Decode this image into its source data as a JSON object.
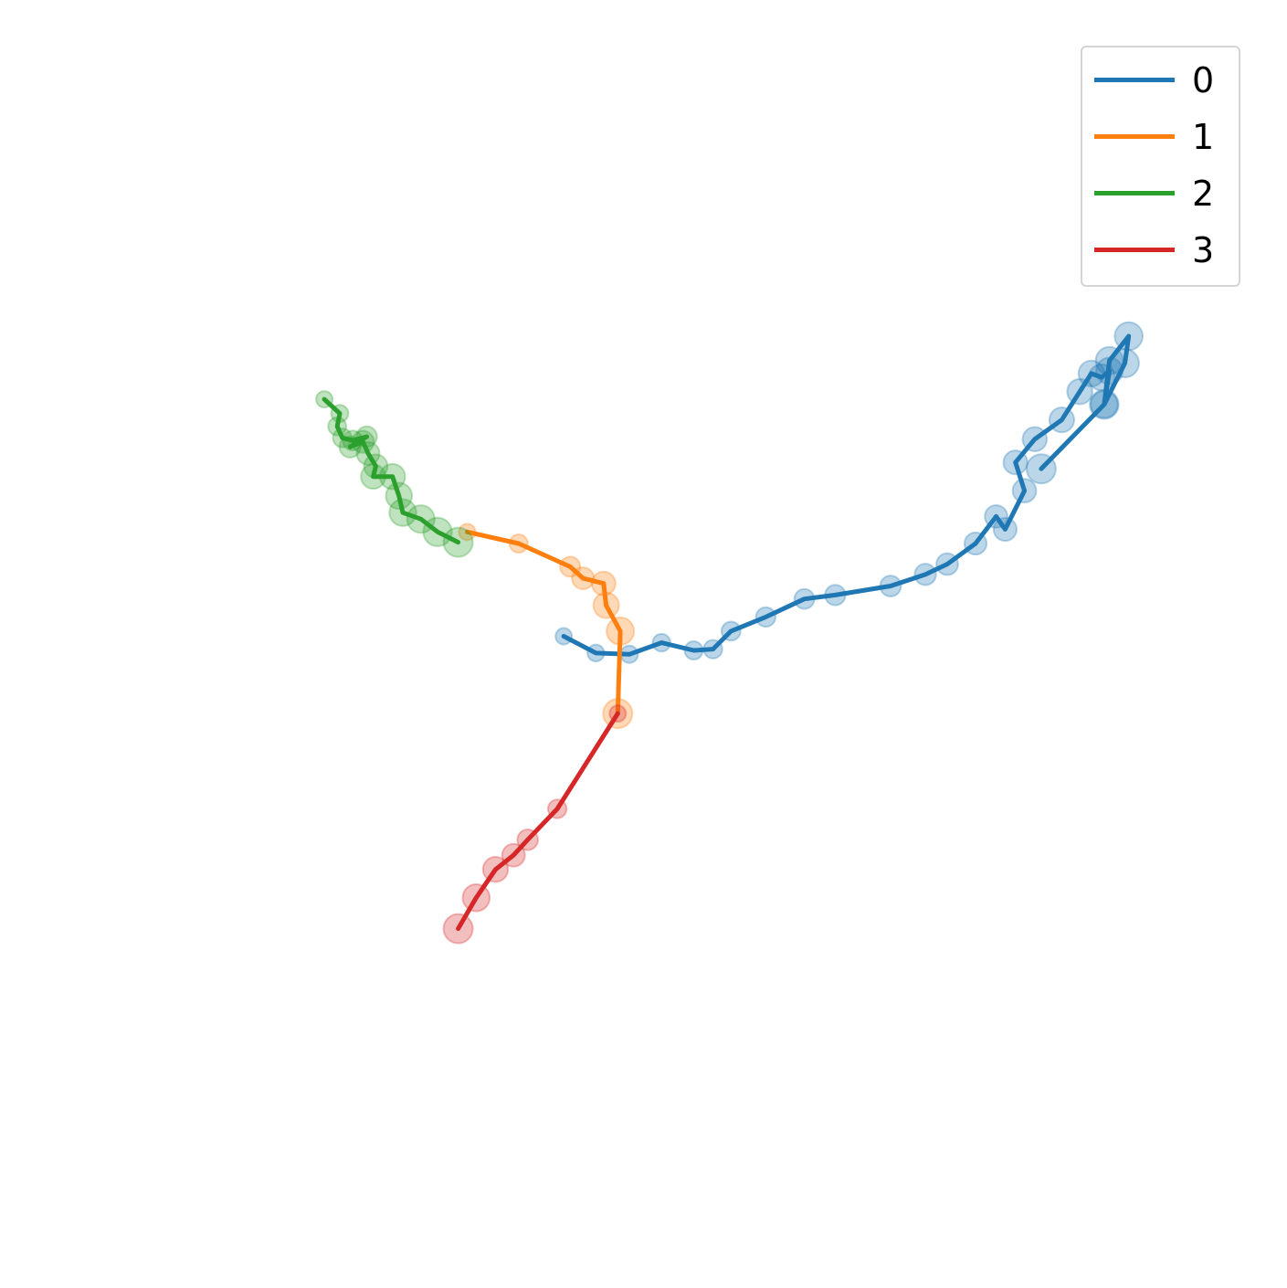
{
  "chart_data": {
    "type": "line",
    "title": "",
    "xlabel": "",
    "ylabel": "",
    "axes_visible": false,
    "grid": false,
    "xlim": [
      0,
      10
    ],
    "ylim": [
      0,
      10
    ],
    "legend": {
      "placement": "upper-right",
      "entries": [
        "0",
        "1",
        "2",
        "3"
      ]
    },
    "series": [
      {
        "name": "0",
        "color": "#1f77b4",
        "marker_alpha": 0.3,
        "points": [
          [
            4.38,
            5.06
          ],
          [
            4.63,
            4.93
          ],
          [
            4.89,
            4.92
          ],
          [
            5.14,
            5.01
          ],
          [
            5.39,
            4.95
          ],
          [
            5.54,
            4.96
          ],
          [
            5.68,
            5.1
          ],
          [
            5.95,
            5.21
          ],
          [
            6.25,
            5.35
          ],
          [
            6.49,
            5.38
          ],
          [
            6.92,
            5.45
          ],
          [
            7.19,
            5.54
          ],
          [
            7.36,
            5.62
          ],
          [
            7.58,
            5.78
          ],
          [
            7.74,
            5.99
          ],
          [
            7.81,
            5.89
          ],
          [
            7.96,
            6.19
          ],
          [
            7.89,
            6.41
          ],
          [
            8.04,
            6.59
          ],
          [
            8.25,
            6.74
          ],
          [
            8.39,
            6.96
          ],
          [
            8.48,
            7.1
          ],
          [
            8.56,
            7.07
          ],
          [
            8.62,
            7.12
          ],
          [
            8.58,
            6.86
          ],
          [
            8.62,
            7.2
          ],
          [
            8.77,
            7.39
          ],
          [
            8.74,
            7.18
          ],
          [
            8.58,
            6.86
          ],
          [
            8.09,
            6.36
          ]
        ]
      },
      {
        "name": "1",
        "color": "#ff7f0e",
        "marker_alpha": 0.3,
        "points": [
          [
            3.63,
            5.87
          ],
          [
            4.03,
            5.78
          ],
          [
            4.43,
            5.6
          ],
          [
            4.53,
            5.51
          ],
          [
            4.69,
            5.47
          ],
          [
            4.71,
            5.3
          ],
          [
            4.82,
            5.1
          ],
          [
            4.8,
            4.46
          ]
        ]
      },
      {
        "name": "2",
        "color": "#2ca02c",
        "marker_alpha": 0.3,
        "points": [
          [
            2.52,
            6.9
          ],
          [
            2.64,
            6.79
          ],
          [
            2.62,
            6.69
          ],
          [
            2.66,
            6.6
          ],
          [
            2.74,
            6.58
          ],
          [
            2.85,
            6.61
          ],
          [
            2.72,
            6.53
          ],
          [
            2.82,
            6.57
          ],
          [
            2.86,
            6.48
          ],
          [
            2.92,
            6.38
          ],
          [
            2.9,
            6.3
          ],
          [
            3.05,
            6.3
          ],
          [
            3.1,
            6.15
          ],
          [
            3.13,
            6.02
          ],
          [
            3.27,
            5.97
          ],
          [
            3.4,
            5.87
          ],
          [
            3.56,
            5.79
          ]
        ]
      },
      {
        "name": "3",
        "color": "#d62728",
        "marker_alpha": 0.3,
        "points": [
          [
            4.8,
            4.46
          ],
          [
            4.33,
            3.72
          ],
          [
            4.1,
            3.48
          ],
          [
            3.99,
            3.36
          ],
          [
            3.85,
            3.25
          ],
          [
            3.7,
            3.03
          ],
          [
            3.56,
            2.79
          ]
        ]
      }
    ]
  }
}
